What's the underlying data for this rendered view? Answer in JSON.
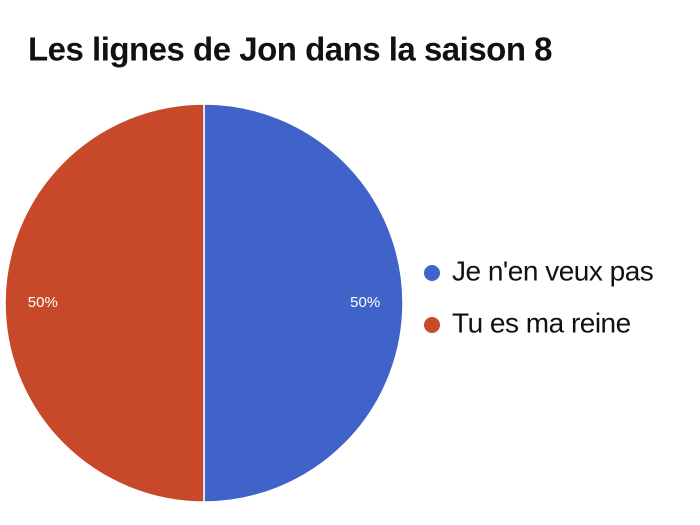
{
  "chart_data": {
    "type": "pie",
    "title": "Les lignes de Jon dans la saison 8",
    "categories": [
      "Je n'en veux pas",
      "Tu es ma reine"
    ],
    "values": [
      50,
      50
    ],
    "value_labels": [
      "50%",
      "50%"
    ],
    "colors": [
      "#3f63c8",
      "#c8482a"
    ],
    "legend": "right"
  }
}
